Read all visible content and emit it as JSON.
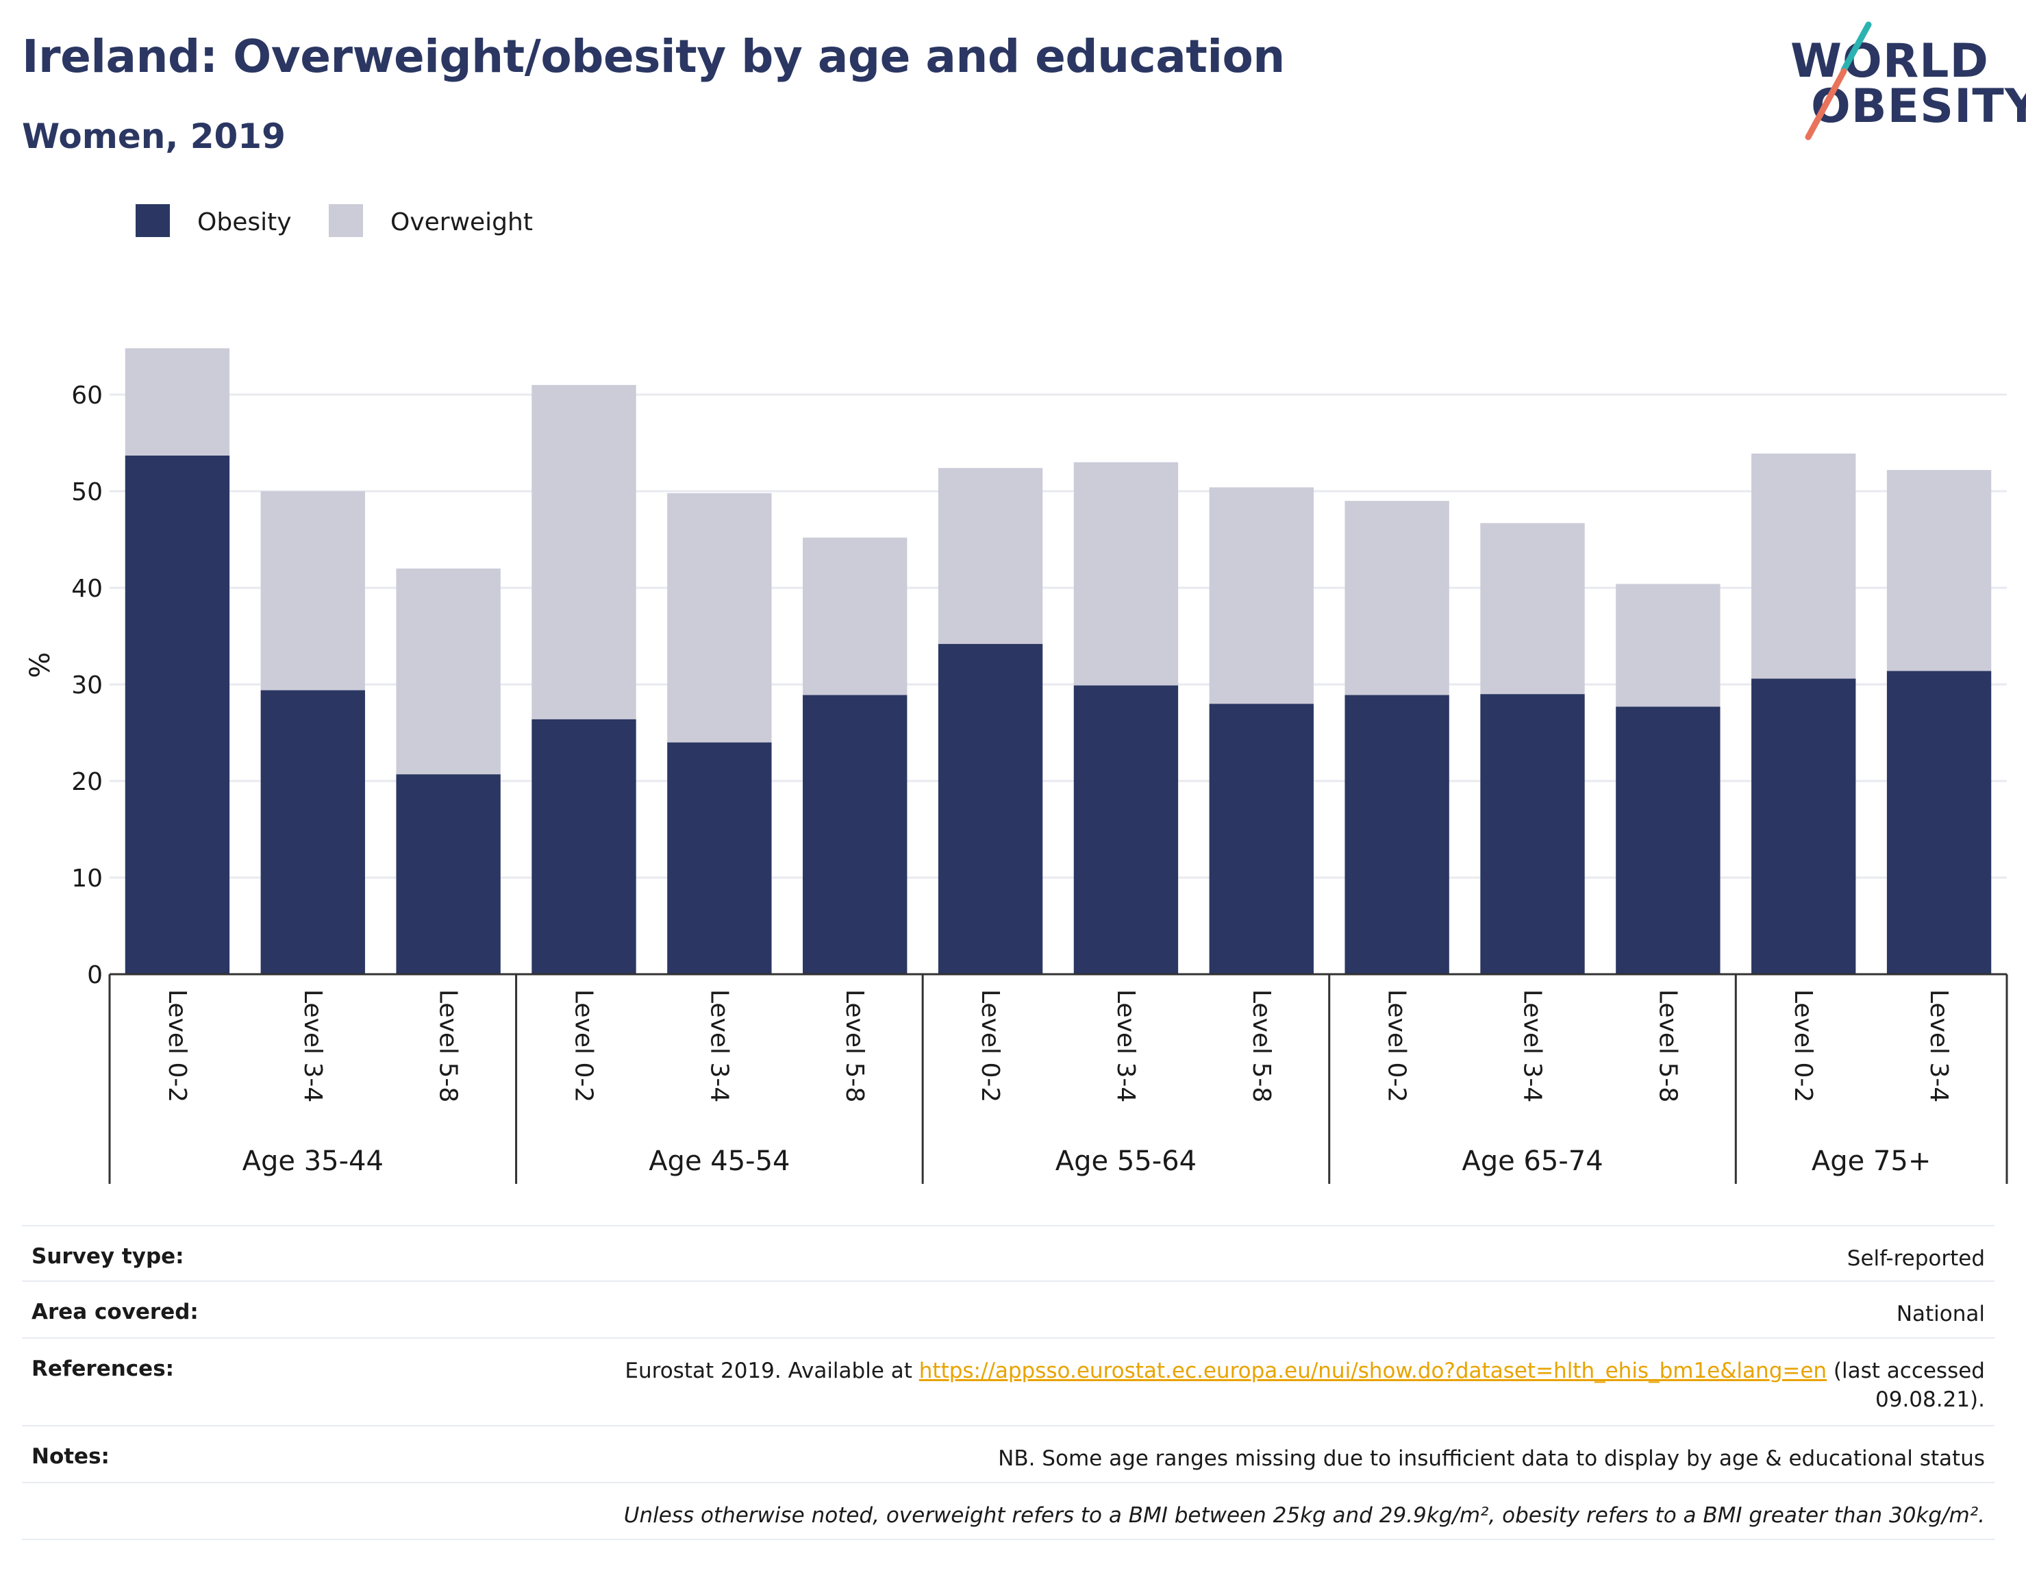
{
  "header": {
    "title": "Ireland: Overweight/obesity by age and education",
    "subtitle": "Women, 2019"
  },
  "logo": {
    "line1": "WORLD",
    "line2": "OBESITY"
  },
  "colors": {
    "obesity": "#2b3762",
    "overweight": "#cbccd8",
    "grid": "#e8eaf0",
    "text": "#1a1a1a",
    "link": "#e8a300"
  },
  "chart_data": {
    "type": "bar",
    "stacked": true,
    "ylabel": "%",
    "ylim": [
      0,
      65
    ],
    "yticks": [
      0,
      10,
      20,
      30,
      40,
      50,
      60
    ],
    "grid": true,
    "legend_position": "top-left",
    "groups": [
      {
        "label": "Age 35-44",
        "categories": [
          "Level 0-2",
          "Level 3-4",
          "Level 5-8"
        ]
      },
      {
        "label": "Age 45-54",
        "categories": [
          "Level 0-2",
          "Level 3-4",
          "Level 5-8"
        ]
      },
      {
        "label": "Age 55-64",
        "categories": [
          "Level 0-2",
          "Level 3-4",
          "Level 5-8"
        ]
      },
      {
        "label": "Age 65-74",
        "categories": [
          "Level 0-2",
          "Level 3-4",
          "Level 5-8"
        ]
      },
      {
        "label": "Age 75+",
        "categories": [
          "Level 0-2",
          "Level 3-4"
        ]
      }
    ],
    "series": [
      {
        "name": "Obesity",
        "values": [
          53.7,
          29.4,
          20.7,
          26.4,
          24.0,
          28.9,
          34.2,
          29.9,
          28.0,
          28.9,
          29.0,
          27.7,
          30.6,
          31.4
        ]
      },
      {
        "name": "Overweight",
        "values": [
          11.1,
          20.6,
          21.3,
          34.6,
          25.8,
          16.3,
          18.2,
          23.1,
          22.4,
          20.1,
          17.7,
          12.7,
          23.3,
          20.8
        ]
      }
    ]
  },
  "footer": {
    "rows": [
      {
        "label": "Survey type:",
        "value": "Self-reported"
      },
      {
        "label": "Area covered:",
        "value": "National"
      },
      {
        "label": "References:",
        "value_pre": "Eurostat 2019. Available at ",
        "link": "https://appsso.eurostat.ec.europa.eu/nui/show.do?dataset=hlth_ehis_bm1e&lang=en",
        "value_post": " (last accessed",
        "value_line2": "09.08.21)."
      },
      {
        "label": "Notes:",
        "value": "NB. Some age ranges missing due to insufficient data to display by age & educational status"
      }
    ],
    "disclaimer": "Unless otherwise noted, overweight refers to a BMI between 25kg and 29.9kg/m², obesity refers to a BMI greater than 30kg/m²."
  }
}
